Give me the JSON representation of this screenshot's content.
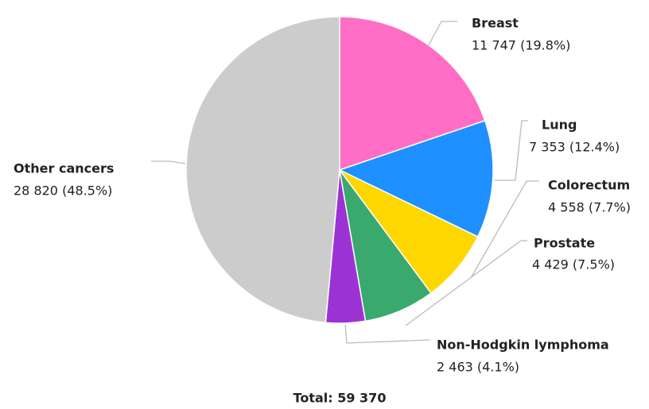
{
  "chart_data": {
    "type": "pie",
    "categories": [
      "Breast",
      "Lung",
      "Colorectum",
      "Prostate",
      "Non-Hodgkin lymphoma",
      "Other cancers"
    ],
    "values": [
      11747,
      7353,
      4558,
      4429,
      2463,
      28820
    ],
    "value_labels": [
      "11 747 (19.8%)",
      "7 353 (12.4%)",
      "4 558 (7.7%)",
      "4 429 (7.5%)",
      "2 463 (4.1%)",
      "28 820 (48.5%)"
    ],
    "colors": [
      "#ff6ec4",
      "#1e90ff",
      "#ffd700",
      "#3aa96e",
      "#9b33d4",
      "#cccccc"
    ],
    "total_label": "Total: 59 370"
  }
}
